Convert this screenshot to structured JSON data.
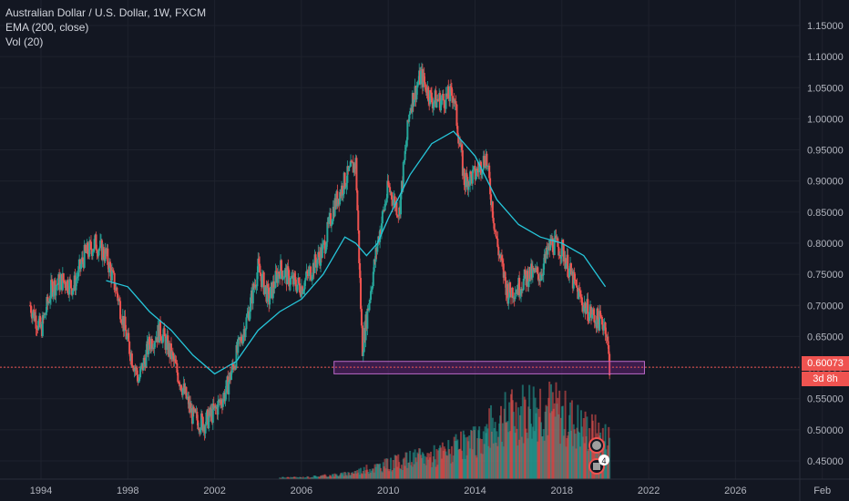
{
  "legend": {
    "title": "Australian Dollar / U.S. Dollar, 1W, FXCM",
    "ema": "EMA (200, close)",
    "vol": "Vol (20)"
  },
  "last_price_label": "0.60073",
  "countdown_label": "3d 8h",
  "marker_badge": "4",
  "colors": {
    "background": "#131722",
    "up": "#26a69a",
    "down": "#ef5350",
    "ema": "#26c6da",
    "zone_fill": "#9c27b0",
    "zone_stroke": "#ba68c8",
    "grid": "#1e222d",
    "price_line": "#ef5350"
  },
  "chart_data": {
    "type": "candlestick",
    "title": "Australian Dollar / U.S. Dollar, 1W, FXCM",
    "ylim": [
      0.42,
      1.17
    ],
    "y_ticks": [
      "1.15000",
      "1.10000",
      "1.05000",
      "1.00000",
      "0.95000",
      "0.90000",
      "0.85000",
      "0.80000",
      "0.75000",
      "0.70000",
      "0.65000",
      "0.60000",
      "0.55000",
      "0.50000",
      "0.45000"
    ],
    "x_ticks": [
      "1994",
      "1998",
      "2002",
      "2006",
      "2010",
      "2014",
      "2018",
      "2022",
      "2026",
      "Feb"
    ],
    "price_series": {
      "x": [
        1993.5,
        1994.0,
        1994.5,
        1995.0,
        1995.5,
        1996.0,
        1996.5,
        1997.0,
        1997.5,
        1998.0,
        1998.5,
        1999.0,
        1999.5,
        2000.0,
        2000.5,
        2001.0,
        2001.5,
        2002.0,
        2002.5,
        2003.0,
        2003.5,
        2004.0,
        2004.5,
        2005.0,
        2005.5,
        2006.0,
        2006.5,
        2007.0,
        2007.5,
        2008.0,
        2008.5,
        2008.8,
        2009.0,
        2009.5,
        2010.0,
        2010.5,
        2011.0,
        2011.5,
        2012.0,
        2012.5,
        2013.0,
        2013.5,
        2014.0,
        2014.5,
        2015.0,
        2015.5,
        2016.0,
        2016.5,
        2017.0,
        2017.5,
        2018.0,
        2018.5,
        2019.0,
        2019.5,
        2020.0,
        2020.2
      ],
      "close": [
        0.7,
        0.66,
        0.73,
        0.74,
        0.73,
        0.78,
        0.8,
        0.78,
        0.72,
        0.64,
        0.58,
        0.64,
        0.66,
        0.62,
        0.57,
        0.52,
        0.51,
        0.53,
        0.56,
        0.62,
        0.68,
        0.76,
        0.71,
        0.76,
        0.74,
        0.73,
        0.76,
        0.79,
        0.86,
        0.9,
        0.93,
        0.63,
        0.68,
        0.8,
        0.89,
        0.85,
        1.02,
        1.07,
        1.03,
        1.03,
        1.04,
        0.9,
        0.91,
        0.94,
        0.8,
        0.72,
        0.73,
        0.75,
        0.75,
        0.8,
        0.79,
        0.74,
        0.7,
        0.68,
        0.67,
        0.6
      ]
    },
    "ema_series": {
      "name": "EMA (200, close)",
      "x": [
        1997.0,
        1998.0,
        1999.0,
        2000.0,
        2001.0,
        2002.0,
        2003.0,
        2004.0,
        2005.0,
        2006.0,
        2007.0,
        2008.0,
        2008.5,
        2009.0,
        2009.5,
        2010.0,
        2011.0,
        2012.0,
        2013.0,
        2014.0,
        2015.0,
        2016.0,
        2017.0,
        2018.0,
        2019.0,
        2020.0
      ],
      "y": [
        0.74,
        0.73,
        0.69,
        0.66,
        0.62,
        0.59,
        0.61,
        0.66,
        0.69,
        0.71,
        0.75,
        0.81,
        0.8,
        0.78,
        0.8,
        0.84,
        0.91,
        0.96,
        0.98,
        0.94,
        0.87,
        0.83,
        0.81,
        0.8,
        0.78,
        0.73
      ]
    },
    "volume": {
      "name": "Vol (20)",
      "x": [
        2006,
        2007,
        2008,
        2009,
        2010,
        2011,
        2012,
        2013,
        2014,
        2015,
        2016,
        2017,
        2018,
        2019,
        2020
      ],
      "values": [
        1,
        2,
        3,
        6,
        9,
        12,
        14,
        18,
        22,
        34,
        40,
        45,
        38,
        30,
        24
      ]
    },
    "support_zone": {
      "x_start": 2007.5,
      "x_end": 2021.8,
      "y_low": 0.59,
      "y_high": 0.61
    },
    "last_price": 0.60073
  }
}
